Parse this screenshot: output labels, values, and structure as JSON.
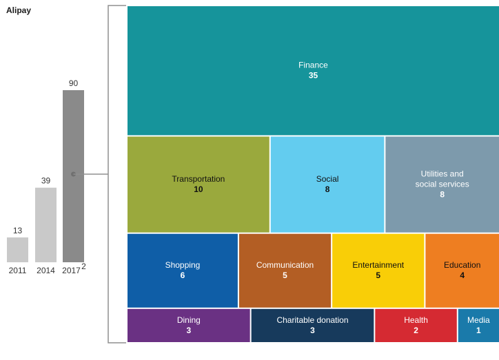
{
  "chart_data": [
    {
      "type": "bar",
      "title": "Alipay",
      "categories": [
        "2011",
        "2014",
        "2017"
      ],
      "category_superscripts": [
        "",
        "",
        "2"
      ],
      "values": [
        13,
        39,
        90
      ],
      "colors": [
        "#c9c9c9",
        "#c9c9c9",
        "#8a8a8a"
      ],
      "ylim": [
        0,
        90
      ]
    },
    {
      "type": "treemap",
      "rows": [
        [
          {
            "label": "Finance",
            "value": 35,
            "color": "#16949b",
            "text_color": "#ffffff"
          }
        ],
        [
          {
            "label": "Transportation",
            "value": 10,
            "color": "#9aa93d",
            "text_color": "#111111"
          },
          {
            "label": "Social",
            "value": 8,
            "color": "#63ccef",
            "text_color": "#111111"
          },
          {
            "label": "Utilities and social services",
            "lines": [
              "Utilities and",
              "social services"
            ],
            "value": 8,
            "color": "#7d9aac",
            "text_color": "#ffffff"
          }
        ],
        [
          {
            "label": "Shopping",
            "value": 6,
            "color": "#0f5ea7",
            "text_color": "#ffffff"
          },
          {
            "label": "Communication",
            "value": 5,
            "color": "#b35e24",
            "text_color": "#ffffff"
          },
          {
            "label": "Entertainment",
            "value": 5,
            "color": "#f9ce07",
            "text_color": "#111111"
          },
          {
            "label": "Education",
            "value": 4,
            "color": "#ee7e21",
            "text_color": "#111111"
          }
        ],
        [
          {
            "label": "Dining",
            "value": 3,
            "color": "#6a3183",
            "text_color": "#ffffff"
          },
          {
            "label": "Charitable donation",
            "value": 3,
            "color": "#173a5c",
            "text_color": "#ffffff"
          },
          {
            "label": "Health",
            "value": 2,
            "color": "#d52a32",
            "text_color": "#ffffff"
          },
          {
            "label": "Media",
            "value": 1,
            "color": "#1a7aaa",
            "text_color": "#ffffff"
          }
        ]
      ]
    }
  ]
}
